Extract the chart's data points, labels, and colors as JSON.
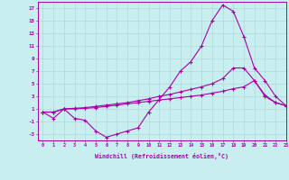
{
  "xlabel": "Windchill (Refroidissement éolien,°C)",
  "bg_color": "#c8eef0",
  "grid_color": "#b0d8dc",
  "line_color": "#aa00aa",
  "x_values": [
    0,
    1,
    2,
    3,
    4,
    5,
    6,
    7,
    8,
    9,
    10,
    11,
    12,
    13,
    14,
    15,
    16,
    17,
    18,
    19,
    20,
    21,
    22,
    23
  ],
  "line1": [
    0.5,
    -0.5,
    1.0,
    -0.5,
    -0.8,
    -2.5,
    -3.5,
    -3.0,
    -2.5,
    -2.0,
    0.5,
    2.5,
    4.5,
    7.0,
    8.5,
    11.0,
    15.0,
    17.5,
    16.5,
    12.5,
    7.5,
    5.5,
    3.0,
    1.5
  ],
  "line2": [
    0.5,
    0.5,
    1.0,
    1.0,
    1.1,
    1.2,
    1.4,
    1.6,
    1.8,
    2.0,
    2.2,
    2.4,
    2.6,
    2.8,
    3.0,
    3.2,
    3.5,
    3.8,
    4.2,
    4.5,
    5.5,
    3.0,
    2.0,
    1.5
  ],
  "line3": [
    0.5,
    0.5,
    1.0,
    1.1,
    1.2,
    1.4,
    1.6,
    1.8,
    2.0,
    2.3,
    2.6,
    3.0,
    3.3,
    3.7,
    4.1,
    4.5,
    5.0,
    5.8,
    7.5,
    7.5,
    5.5,
    3.2,
    2.0,
    1.5
  ],
  "ylim": [
    -4,
    18
  ],
  "yticks": [
    -3,
    -1,
    1,
    3,
    5,
    7,
    9,
    11,
    13,
    15,
    17
  ],
  "xlim": [
    -0.5,
    23
  ],
  "xticks": [
    0,
    1,
    2,
    3,
    4,
    5,
    6,
    7,
    8,
    9,
    10,
    11,
    12,
    13,
    14,
    15,
    16,
    17,
    18,
    19,
    20,
    21,
    22,
    23
  ]
}
